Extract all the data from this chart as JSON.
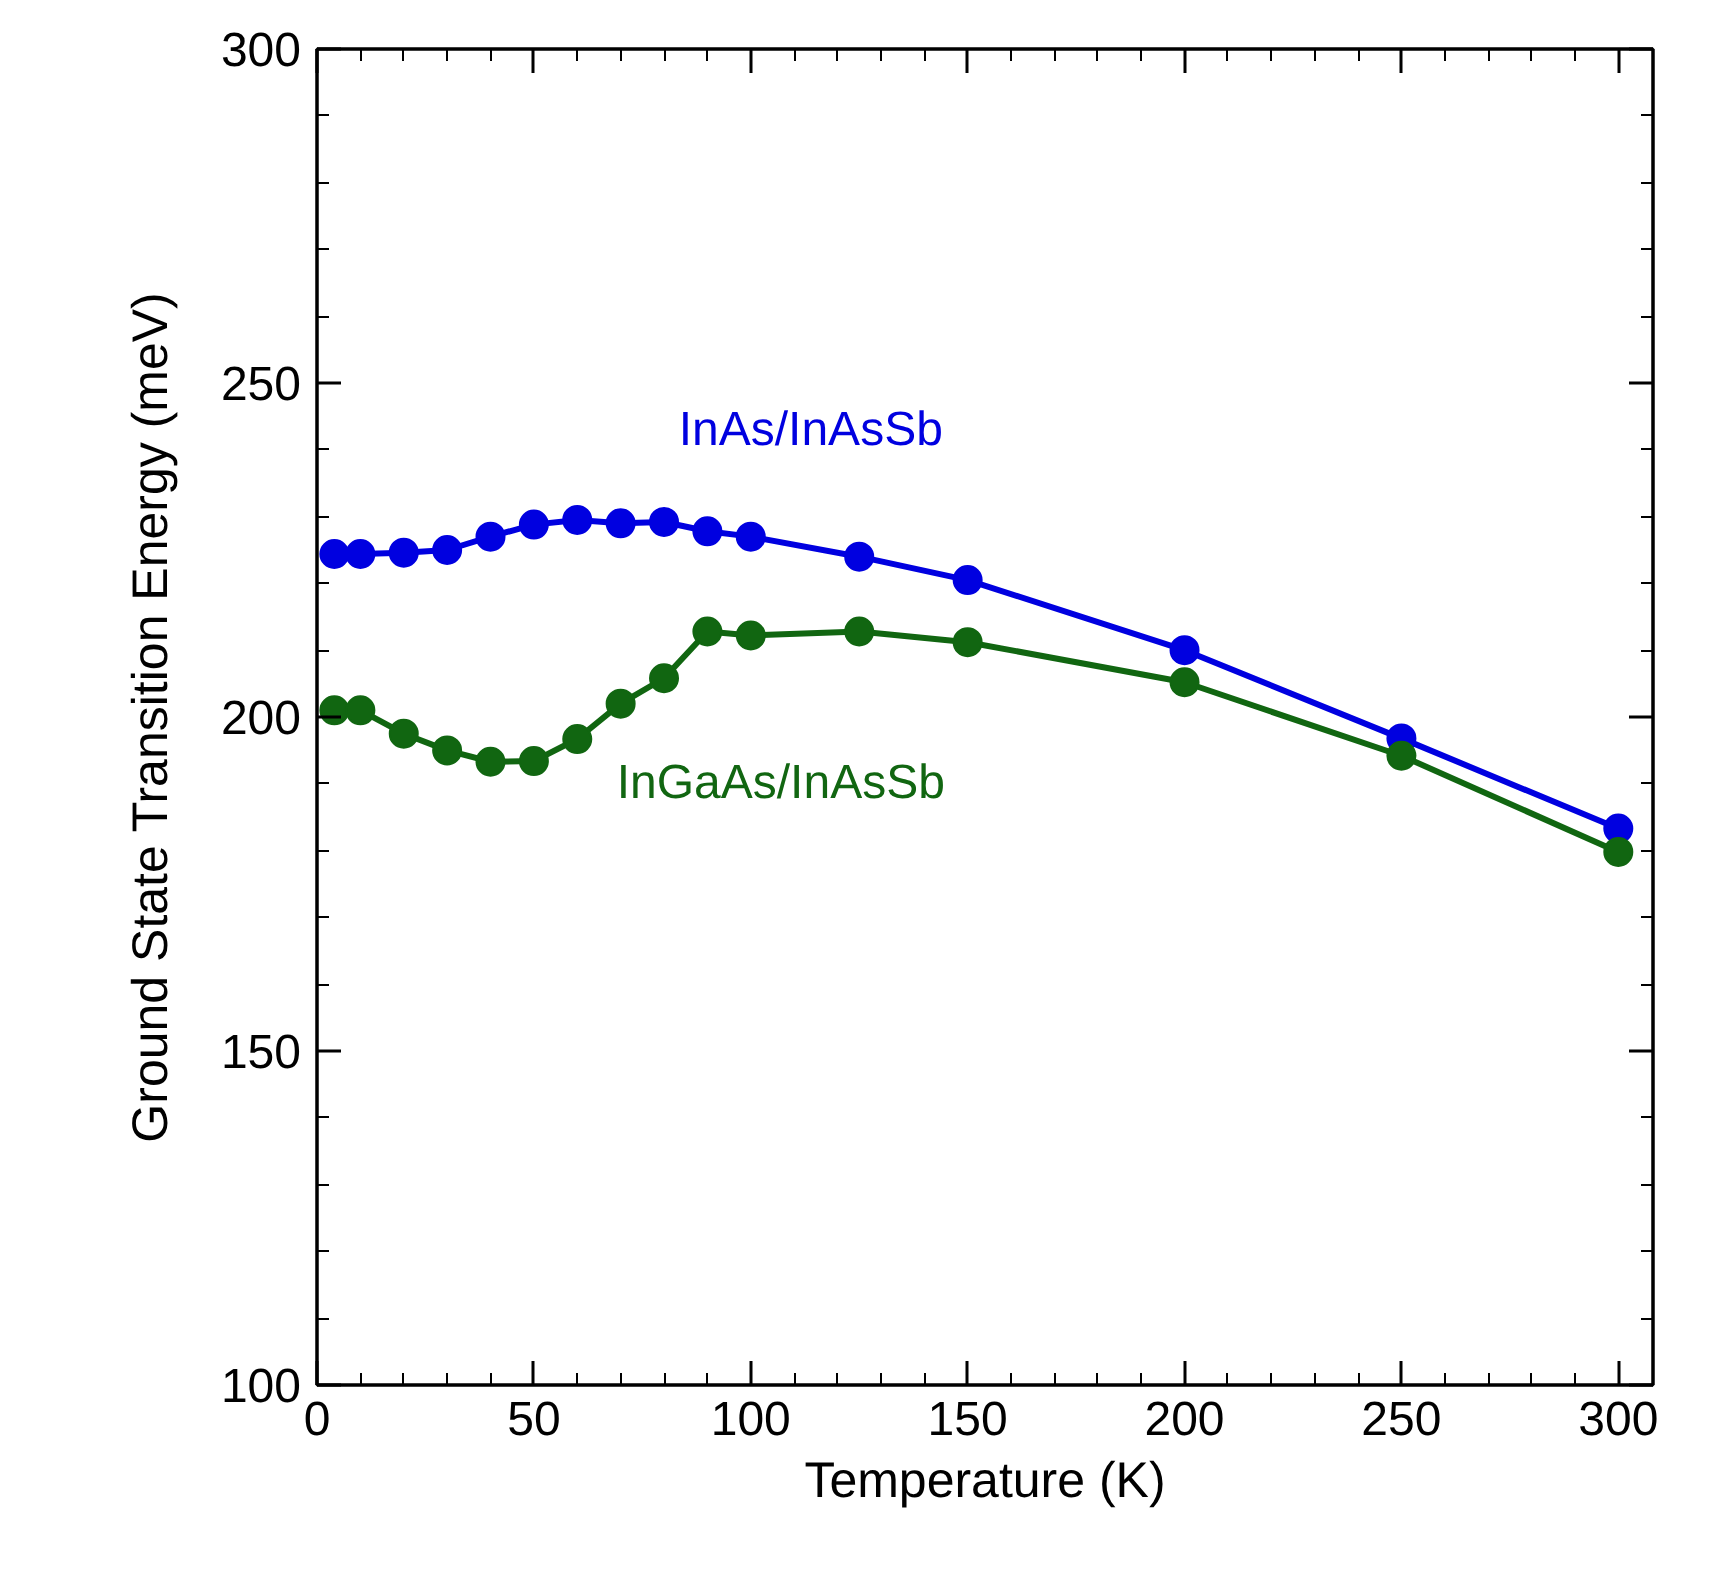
{
  "chart_data": {
    "type": "line",
    "xlabel": "Temperature (K)",
    "ylabel": "Ground State Transition Energy (meV)",
    "xlim": [
      0,
      308
    ],
    "ylim": [
      100,
      300
    ],
    "xticks": [
      0,
      50,
      100,
      150,
      200,
      250,
      300
    ],
    "yticks": [
      100,
      150,
      200,
      250,
      300
    ],
    "grid": false,
    "marker": "circle",
    "line_style": "solid",
    "series": [
      {
        "name": "InAs/InAsSb",
        "color": "#0000e0",
        "x": [
          4,
          10,
          20,
          30,
          40,
          50,
          60,
          70,
          80,
          90,
          100,
          125,
          150,
          200,
          250,
          300
        ],
        "values": [
          224.4,
          224.4,
          224.6,
          225,
          227,
          228.8,
          229.5,
          229,
          229.2,
          227.8,
          227,
          224,
          220.5,
          210,
          196.8,
          183.3
        ]
      },
      {
        "name": "InGaAs/InAsSb",
        "color": "#116611",
        "x": [
          4,
          10,
          20,
          30,
          40,
          50,
          60,
          70,
          80,
          90,
          100,
          125,
          150,
          200,
          250,
          300
        ],
        "values": [
          201,
          201,
          197.5,
          195,
          193.3,
          193.4,
          196.7,
          202,
          205.8,
          212.8,
          212.2,
          212.8,
          211.2,
          205.2,
          194.2,
          179.8
        ]
      }
    ]
  }
}
